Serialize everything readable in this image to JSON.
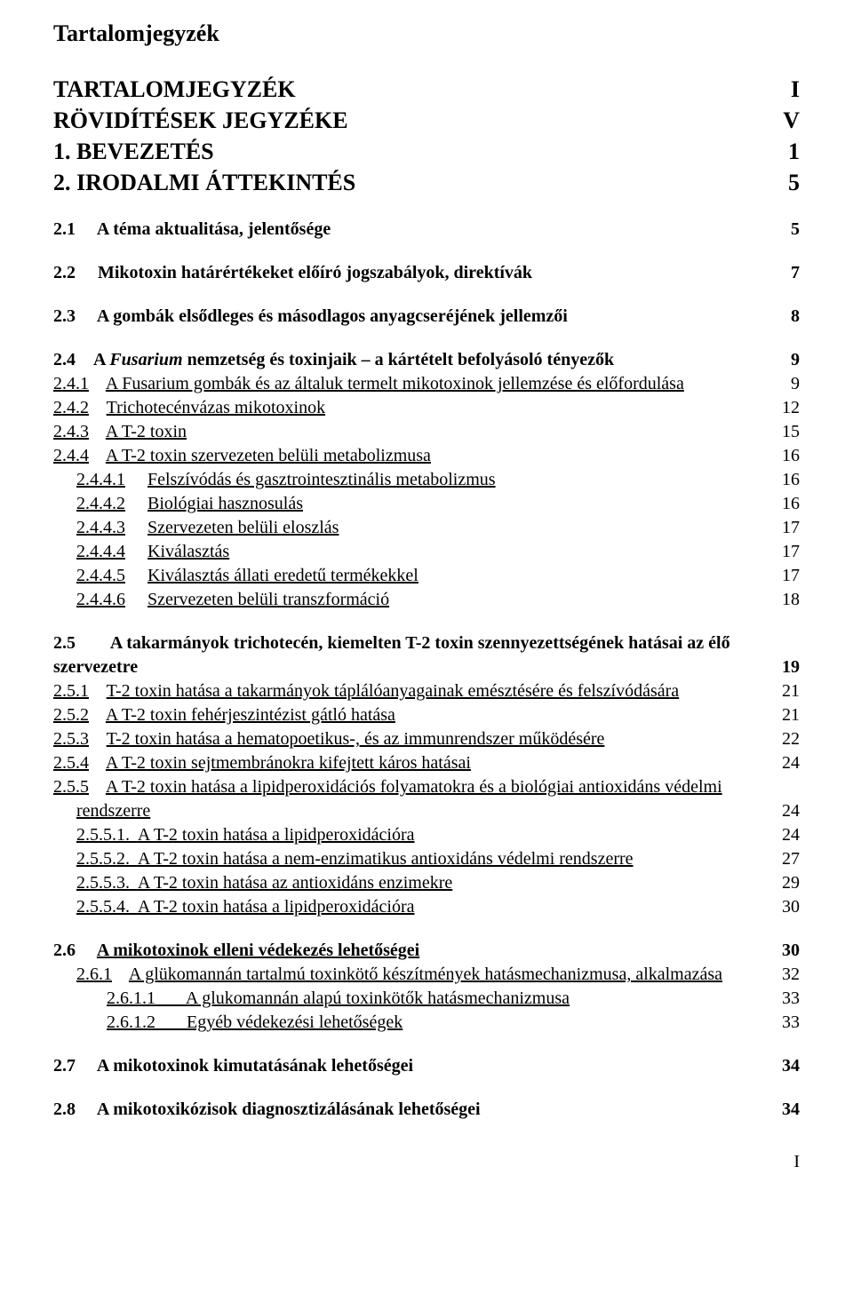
{
  "title": "Tartalomjegyzék",
  "front": [
    {
      "label": "TARTALOMJEGYZÉK",
      "page": "I"
    },
    {
      "label": "RÖVIDÍTÉSEK JEGYZÉKE",
      "page": "V"
    },
    {
      "label": "1. BEVEZETÉS",
      "page": "1"
    },
    {
      "label": "2. IRODALMI ÁTTEKINTÉS",
      "page": "5"
    }
  ],
  "s21": {
    "num": "2.1",
    "label": "A téma aktualitása, jelentősége",
    "page": "5"
  },
  "s22": {
    "num": "2.2",
    "label": "Mikotoxin határértékeket előíró jogszabályok, direktívák",
    "page": "7"
  },
  "s23": {
    "num": "2.3",
    "label": "A gombák elsődleges és másodlagos anyagcseréjének jellemzői",
    "page": "8"
  },
  "s24": {
    "head_num": "2.4",
    "head_pre": "A ",
    "head_italic": "Fusarium",
    "head_post": " nemzetség és toxinjaik – a kártételt befolyásoló tényezők",
    "head_page": "9",
    "items": [
      {
        "num": "2.4.1",
        "label": "A Fusarium gombák és az általuk termelt mikotoxinok jellemzése és előfordulása",
        "page": "9"
      },
      {
        "num": "2.4.2",
        "label": "Trichotecénvázas mikotoxinok",
        "page": "12"
      },
      {
        "num": "2.4.3",
        "label": "A T-2 toxin",
        "page": "15"
      },
      {
        "num": "2.4.4",
        "label": "A T-2 toxin szervezeten belüli metabolizmusa",
        "page": "16"
      }
    ],
    "sub": [
      {
        "num": "2.4.4.1",
        "label": "Felszívódás és gasztrointesztinális metabolizmus",
        "page": "16"
      },
      {
        "num": "2.4.4.2",
        "label": "Biológiai hasznosulás",
        "page": "16"
      },
      {
        "num": "2.4.4.3",
        "label": "Szervezeten belüli eloszlás",
        "page": "17"
      },
      {
        "num": "2.4.4.4",
        "label": "Kiválasztás",
        "page": "17"
      },
      {
        "num": "2.4.4.5",
        "label": "Kiválasztás állati eredetű termékekkel",
        "page": "17"
      },
      {
        "num": "2.4.4.6",
        "label": "Szervezeten belüli transzformáció",
        "page": "18"
      }
    ]
  },
  "s25": {
    "head_num": "2.5",
    "head_line1": "A takarmányok trichotecén, kiemelten T-2 toxin szennyezettségének hatásai az élő",
    "head_line2": "szervezetre",
    "head_page": "19",
    "items": [
      {
        "num": "2.5.1",
        "label": "T-2 toxin hatása a takarmányok táplálóanyagainak emésztésére és felszívódására",
        "page": "21"
      },
      {
        "num": "2.5.2",
        "label": "A T-2 toxin fehérjeszintézist gátló hatása",
        "page": "21"
      },
      {
        "num": "2.5.3",
        "label": "T-2 toxin hatása a hematopoetikus-, és az immunrendszer működésére",
        "page": "22"
      },
      {
        "num": "2.5.4",
        "label": "A T-2 toxin sejtmembránokra kifejtett káros hatásai",
        "page": "24"
      }
    ],
    "item5_num": "2.5.5",
    "item5_line1": "A T-2 toxin hatása a lipidperoxidációs folyamatokra és a biológiai antioxidáns védelmi",
    "item5_line2": "rendszerre",
    "item5_page": "24",
    "sub": [
      {
        "num": "2.5.5.1.",
        "label": "A T-2 toxin hatása a lipidperoxidációra",
        "page": "24"
      },
      {
        "num": "2.5.5.2.",
        "label": "A T-2 toxin hatása a nem-enzimatikus antioxidáns védelmi rendszerre",
        "page": "27"
      },
      {
        "num": "2.5.5.3.",
        "label": "A T-2 toxin hatása az antioxidáns enzimekre",
        "page": "29"
      },
      {
        "num": "2.5.5.4.",
        "label": "A T-2 toxin hatása a lipidperoxidációra",
        "page": "30"
      }
    ]
  },
  "s26": {
    "head_num": "2.6",
    "head_label": "A mikotoxinok elleni védekezés lehetőségei",
    "head_page": "30",
    "items": [
      {
        "num": "2.6.1",
        "label": "A glükomannán tartalmú toxinkötő készítmények hatásmechanizmusa, alkalmazása",
        "page": "32"
      }
    ],
    "sub": [
      {
        "num": "2.6.1.1",
        "label": "A glukomannán alapú toxinkötők hatásmechanizmusa",
        "page": "33"
      },
      {
        "num": "2.6.1.2",
        "label": "Egyéb védekezési lehetőségek",
        "page": "33"
      }
    ]
  },
  "s27": {
    "num": "2.7",
    "label": "A mikotoxinok kimutatásának lehetőségei",
    "page": "34"
  },
  "s28": {
    "num": "2.8",
    "label": "A mikotoxikózisok diagnosztizálásának lehetőségei",
    "page": "34"
  },
  "footerPage": "I"
}
